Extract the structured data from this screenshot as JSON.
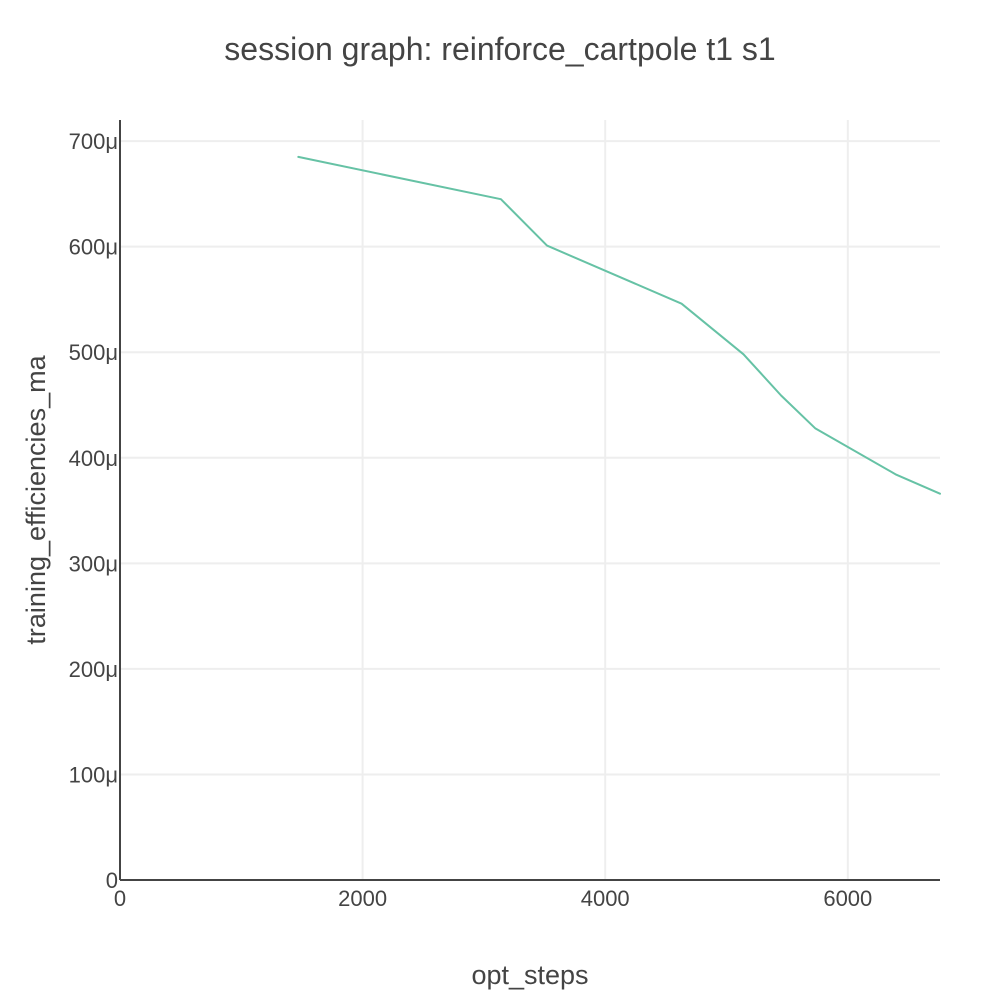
{
  "chart_data": {
    "type": "line",
    "title": "session graph: reinforce_cartpole t1 s1",
    "xlabel": "opt_steps",
    "ylabel": "training_efficiencies_ma",
    "xlim": [
      0,
      6760
    ],
    "ylim": [
      0,
      0.00072
    ],
    "x_ticks": [
      {
        "value": 0,
        "label": "0"
      },
      {
        "value": 2000,
        "label": "2000"
      },
      {
        "value": 4000,
        "label": "4000"
      },
      {
        "value": 6000,
        "label": "6000"
      }
    ],
    "y_ticks": [
      {
        "value": 0,
        "label": "0"
      },
      {
        "value": 0.0001,
        "label": "100μ"
      },
      {
        "value": 0.0002,
        "label": "200μ"
      },
      {
        "value": 0.0003,
        "label": "300μ"
      },
      {
        "value": 0.0004,
        "label": "400μ"
      },
      {
        "value": 0.0005,
        "label": "500μ"
      },
      {
        "value": 0.0006,
        "label": "600μ"
      },
      {
        "value": 0.0007,
        "label": "700μ"
      }
    ],
    "grid": true,
    "legend": "none",
    "series": [
      {
        "color": "#66c2a5",
        "x": [
          1470,
          3140,
          3520,
          4630,
          5140,
          5450,
          5730,
          6400,
          6760
        ],
        "y": [
          0.000685,
          0.000645,
          0.000601,
          0.000546,
          0.000498,
          0.000459,
          0.000428,
          0.000384,
          0.000366
        ]
      }
    ]
  }
}
